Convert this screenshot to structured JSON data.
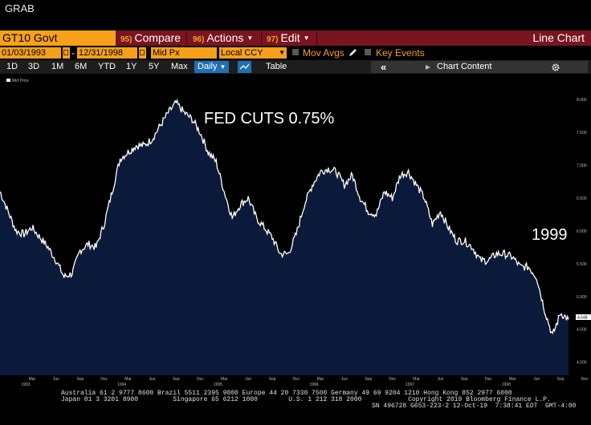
{
  "window": {
    "title": "GRAB"
  },
  "command_bar": {
    "ticker": "GT10 Govt",
    "menus": [
      {
        "num": "95)",
        "label": "Compare",
        "dropdown": false
      },
      {
        "num": "96)",
        "label": "Actions",
        "dropdown": true
      },
      {
        "num": "97)",
        "label": "Edit",
        "dropdown": true
      }
    ],
    "chart_type": "Line Chart"
  },
  "params": {
    "start_date": "01/03/1993",
    "date_separator": "-",
    "end_date": "12/31/1998",
    "price_field": "Mid Px",
    "currency": "Local CCY",
    "mov_avgs_label": "Mov Avgs",
    "key_events_label": "Key Events"
  },
  "range_bar": {
    "ranges": [
      "1D",
      "3D",
      "1M",
      "6M",
      "YTD",
      "1Y",
      "5Y",
      "Max"
    ],
    "frequency": "Daily",
    "table_label": "Table",
    "collapse_label": "«",
    "chart_content_label": "Chart Content"
  },
  "chart_data": {
    "type": "area",
    "security": "GT10 Govt",
    "series": [
      {
        "name": "Mid Price"
      }
    ],
    "legend": "Mid Price",
    "ylim": [
      3.8,
      8.1
    ],
    "yticks": [
      "4.000",
      "4.500",
      "5.000",
      "5.500",
      "6.000",
      "6.500",
      "7.000",
      "7.500",
      "8.000"
    ],
    "last_value_label": "4.648",
    "x_month_labels": [
      "Mar",
      "Jun",
      "Sep",
      "Dec",
      "Mar",
      "Jun",
      "Sep",
      "Dec",
      "Mar",
      "Jun",
      "Sep",
      "Dec",
      "Mar",
      "Jun",
      "Sep",
      "Dec",
      "Mar",
      "Jun",
      "Sep",
      "Dec",
      "Mar",
      "Jun",
      "Sep",
      "Dec"
    ],
    "x_year_labels": [
      "1993",
      "1994",
      "1995",
      "1996",
      "1997",
      "1998"
    ],
    "points": [
      [
        "1993-01",
        6.6
      ],
      [
        "1993-02",
        6.3
      ],
      [
        "1993-03",
        6.0
      ],
      [
        "1993-04",
        5.95
      ],
      [
        "1993-05",
        6.05
      ],
      [
        "1993-06",
        5.9
      ],
      [
        "1993-07",
        5.75
      ],
      [
        "1993-08",
        5.55
      ],
      [
        "1993-09",
        5.3
      ],
      [
        "1993-10",
        5.35
      ],
      [
        "1993-11",
        5.7
      ],
      [
        "1993-12",
        5.8
      ],
      [
        "1994-01",
        5.75
      ],
      [
        "1994-02",
        6.1
      ],
      [
        "1994-03",
        6.6
      ],
      [
        "1994-04",
        7.1
      ],
      [
        "1994-05",
        7.2
      ],
      [
        "1994-06",
        7.3
      ],
      [
        "1994-07",
        7.3
      ],
      [
        "1994-08",
        7.4
      ],
      [
        "1994-09",
        7.6
      ],
      [
        "1994-10",
        7.8
      ],
      [
        "1994-11",
        7.95
      ],
      [
        "1994-12",
        7.8
      ],
      [
        "1995-01",
        7.7
      ],
      [
        "1995-02",
        7.5
      ],
      [
        "1995-03",
        7.2
      ],
      [
        "1995-04",
        7.05
      ],
      [
        "1995-05",
        6.6
      ],
      [
        "1995-06",
        6.2
      ],
      [
        "1995-07",
        6.4
      ],
      [
        "1995-08",
        6.5
      ],
      [
        "1995-09",
        6.2
      ],
      [
        "1995-10",
        6.05
      ],
      [
        "1995-11",
        5.9
      ],
      [
        "1995-12",
        5.65
      ],
      [
        "1996-01",
        5.65
      ],
      [
        "1996-02",
        5.95
      ],
      [
        "1996-03",
        6.4
      ],
      [
        "1996-04",
        6.7
      ],
      [
        "1996-05",
        6.9
      ],
      [
        "1996-06",
        6.95
      ],
      [
        "1996-07",
        6.9
      ],
      [
        "1996-08",
        6.7
      ],
      [
        "1996-09",
        6.85
      ],
      [
        "1996-10",
        6.5
      ],
      [
        "1996-11",
        6.3
      ],
      [
        "1996-12",
        6.25
      ],
      [
        "1997-01",
        6.6
      ],
      [
        "1997-02",
        6.5
      ],
      [
        "1997-03",
        6.85
      ],
      [
        "1997-04",
        6.9
      ],
      [
        "1997-05",
        6.7
      ],
      [
        "1997-06",
        6.5
      ],
      [
        "1997-07",
        6.1
      ],
      [
        "1997-08",
        6.3
      ],
      [
        "1997-09",
        6.05
      ],
      [
        "1997-10",
        5.85
      ],
      [
        "1997-11",
        5.85
      ],
      [
        "1997-12",
        5.75
      ],
      [
        "1998-01",
        5.55
      ],
      [
        "1998-02",
        5.55
      ],
      [
        "1998-03",
        5.65
      ],
      [
        "1998-04",
        5.65
      ],
      [
        "1998-05",
        5.6
      ],
      [
        "1998-06",
        5.45
      ],
      [
        "1998-07",
        5.45
      ],
      [
        "1998-08",
        5.3
      ],
      [
        "1998-09",
        4.8
      ],
      [
        "1998-10",
        4.4
      ],
      [
        "1998-11",
        4.75
      ],
      [
        "1998-12",
        4.65
      ]
    ],
    "annotations": [
      "FED CUTS 0.75%",
      "1999"
    ],
    "grid": false
  },
  "footer": {
    "line1": "Australia 61 2 9777 8600 Brazil 5511 2395 9000 Europe 44 20 7330 7500 Germany 49 69 9204 1210 Hong Kong 852 2977 6000",
    "line2": "Japan 81 3 3201 8900         Singapore 65 6212 1000        U.S. 1 212 318 2000            Copyright 2019 Bloomberg Finance L.P.",
    "line3": "SN 496728 G653-223-2 12-Oct-19  7:38:41 EDT  GMT-4:00"
  }
}
